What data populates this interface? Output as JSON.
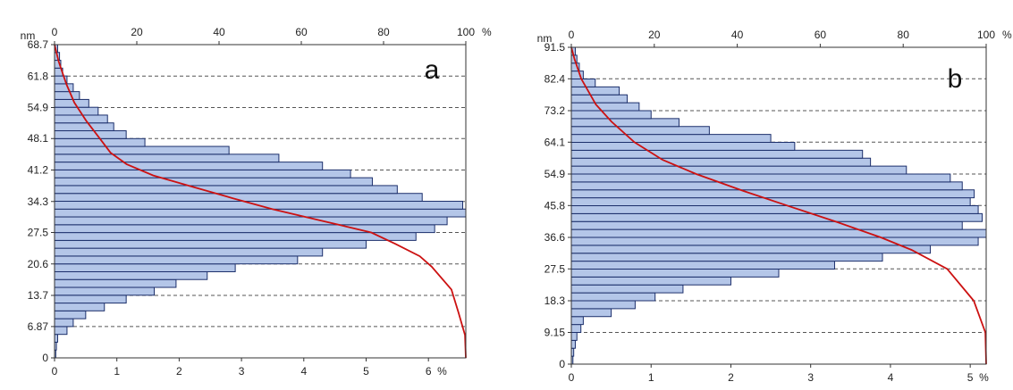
{
  "chart_data": [
    {
      "type": "bar",
      "panel_label": "a",
      "y_unit": "nm",
      "top_axis_unit": "%",
      "bottom_axis_unit": "%",
      "y_ticks": [
        "0",
        "6.87",
        "13.7",
        "20.6",
        "27.5",
        "34.3",
        "41.2",
        "48.1",
        "54.9",
        "61.8",
        "68.7"
      ],
      "ylim": [
        0,
        68.7
      ],
      "top_ticks": [
        "0",
        "20",
        "40",
        "60",
        "80",
        "100"
      ],
      "top_lim": [
        0,
        100
      ],
      "bottom_ticks": [
        "0",
        "1",
        "2",
        "3",
        "4",
        "5",
        "6"
      ],
      "bottom_lim": [
        0,
        6.6
      ],
      "bin_width_nm": 1.718,
      "bins_lower_nm": [
        0,
        1.72,
        3.44,
        5.15,
        6.87,
        8.59,
        10.31,
        12.02,
        13.74,
        15.46,
        17.18,
        18.89,
        20.61,
        22.33,
        24.05,
        25.76,
        27.48,
        29.2,
        30.92,
        32.63,
        34.35,
        36.07,
        37.79,
        39.5,
        41.22,
        42.94,
        44.66,
        46.37,
        48.09,
        49.81,
        51.53,
        53.24,
        54.96,
        56.68,
        58.4,
        60.11,
        61.83,
        63.55,
        65.27,
        66.98
      ],
      "values": [
        0.02,
        0.03,
        0.05,
        0.2,
        0.3,
        0.5,
        0.8,
        1.15,
        1.6,
        1.95,
        2.45,
        2.9,
        3.9,
        4.3,
        5.0,
        5.8,
        6.1,
        6.3,
        6.6,
        6.55,
        5.9,
        5.5,
        5.1,
        4.75,
        4.3,
        3.6,
        2.8,
        1.45,
        1.15,
        0.95,
        0.85,
        0.7,
        0.55,
        0.4,
        0.3,
        0.2,
        0.13,
        0.1,
        0.08,
        0.05
      ],
      "cumulative_curve": {
        "color": "#cc1111",
        "points": [
          [
            0,
            100
          ],
          [
            5,
            99.8
          ],
          [
            10,
            98.2
          ],
          [
            15,
            96.5
          ],
          [
            20,
            91.7
          ],
          [
            22.3,
            88.8
          ],
          [
            25,
            82.9
          ],
          [
            27.5,
            77.0
          ],
          [
            30,
            65.3
          ],
          [
            32.6,
            53.0
          ],
          [
            35,
            43.4
          ],
          [
            37.5,
            33.6
          ],
          [
            40,
            24.0
          ],
          [
            42.5,
            17.5
          ],
          [
            45,
            13.6
          ],
          [
            48,
            11.1
          ],
          [
            52,
            7.7
          ],
          [
            56,
            4.8
          ],
          [
            60,
            2.9
          ],
          [
            65,
            1.0
          ],
          [
            68.7,
            0
          ]
        ]
      },
      "bar_fill": "#b4c6e8",
      "bar_stroke": "#1c2f6b",
      "grid": "dashed horizontal at y ticks"
    },
    {
      "type": "bar",
      "panel_label": "b",
      "y_unit": "nm",
      "top_axis_unit": "%",
      "bottom_axis_unit": "%",
      "y_ticks": [
        "0",
        "9.15",
        "18.3",
        "27.5",
        "36.6",
        "45.8",
        "54.9",
        "64.1",
        "73.2",
        "82.4",
        "91.5"
      ],
      "ylim": [
        0,
        91.5
      ],
      "top_ticks": [
        "0",
        "20",
        "40",
        "60",
        "80",
        "100"
      ],
      "top_lim": [
        0,
        100
      ],
      "bottom_ticks": [
        "0",
        "1",
        "2",
        "3",
        "4",
        "5"
      ],
      "bottom_lim": [
        0,
        5.2
      ],
      "bin_width_nm": 2.288,
      "bins_lower_nm": [
        0,
        2.29,
        4.58,
        6.86,
        9.15,
        11.44,
        13.73,
        16.01,
        18.3,
        20.59,
        22.88,
        25.16,
        27.45,
        29.74,
        32.03,
        34.31,
        36.6,
        38.89,
        41.18,
        43.46,
        45.75,
        48.04,
        50.33,
        52.61,
        54.9,
        57.19,
        59.48,
        61.76,
        64.05,
        66.34,
        68.63,
        70.91,
        73.2,
        75.49,
        77.78,
        80.06,
        82.35,
        84.64,
        86.93,
        89.21
      ],
      "values": [
        0.02,
        0.03,
        0.05,
        0.07,
        0.12,
        0.15,
        0.5,
        0.8,
        1.05,
        1.4,
        2.0,
        2.6,
        3.3,
        3.9,
        4.5,
        5.1,
        5.2,
        4.9,
        5.15,
        5.1,
        5.0,
        5.05,
        4.9,
        4.75,
        4.2,
        3.75,
        3.65,
        2.8,
        2.5,
        1.73,
        1.35,
        1.0,
        0.85,
        0.7,
        0.6,
        0.3,
        0.15,
        0.1,
        0.07,
        0.05
      ],
      "cumulative_curve": {
        "color": "#cc1111",
        "points": [
          [
            0,
            100
          ],
          [
            9.15,
            99.8
          ],
          [
            18.3,
            97.0
          ],
          [
            27.5,
            90.6
          ],
          [
            33,
            82.0
          ],
          [
            36.6,
            74.6
          ],
          [
            41,
            64.1
          ],
          [
            45.8,
            52.0
          ],
          [
            50,
            41.5
          ],
          [
            54.9,
            30.1
          ],
          [
            59,
            22.0
          ],
          [
            64.1,
            15.2
          ],
          [
            70,
            9.7
          ],
          [
            75,
            5.9
          ],
          [
            82.4,
            2.4
          ],
          [
            88,
            0.8
          ],
          [
            91.5,
            0
          ]
        ]
      },
      "bar_fill": "#b4c6e8",
      "bar_stroke": "#1c2f6b",
      "grid": "dashed horizontal at y ticks"
    }
  ]
}
